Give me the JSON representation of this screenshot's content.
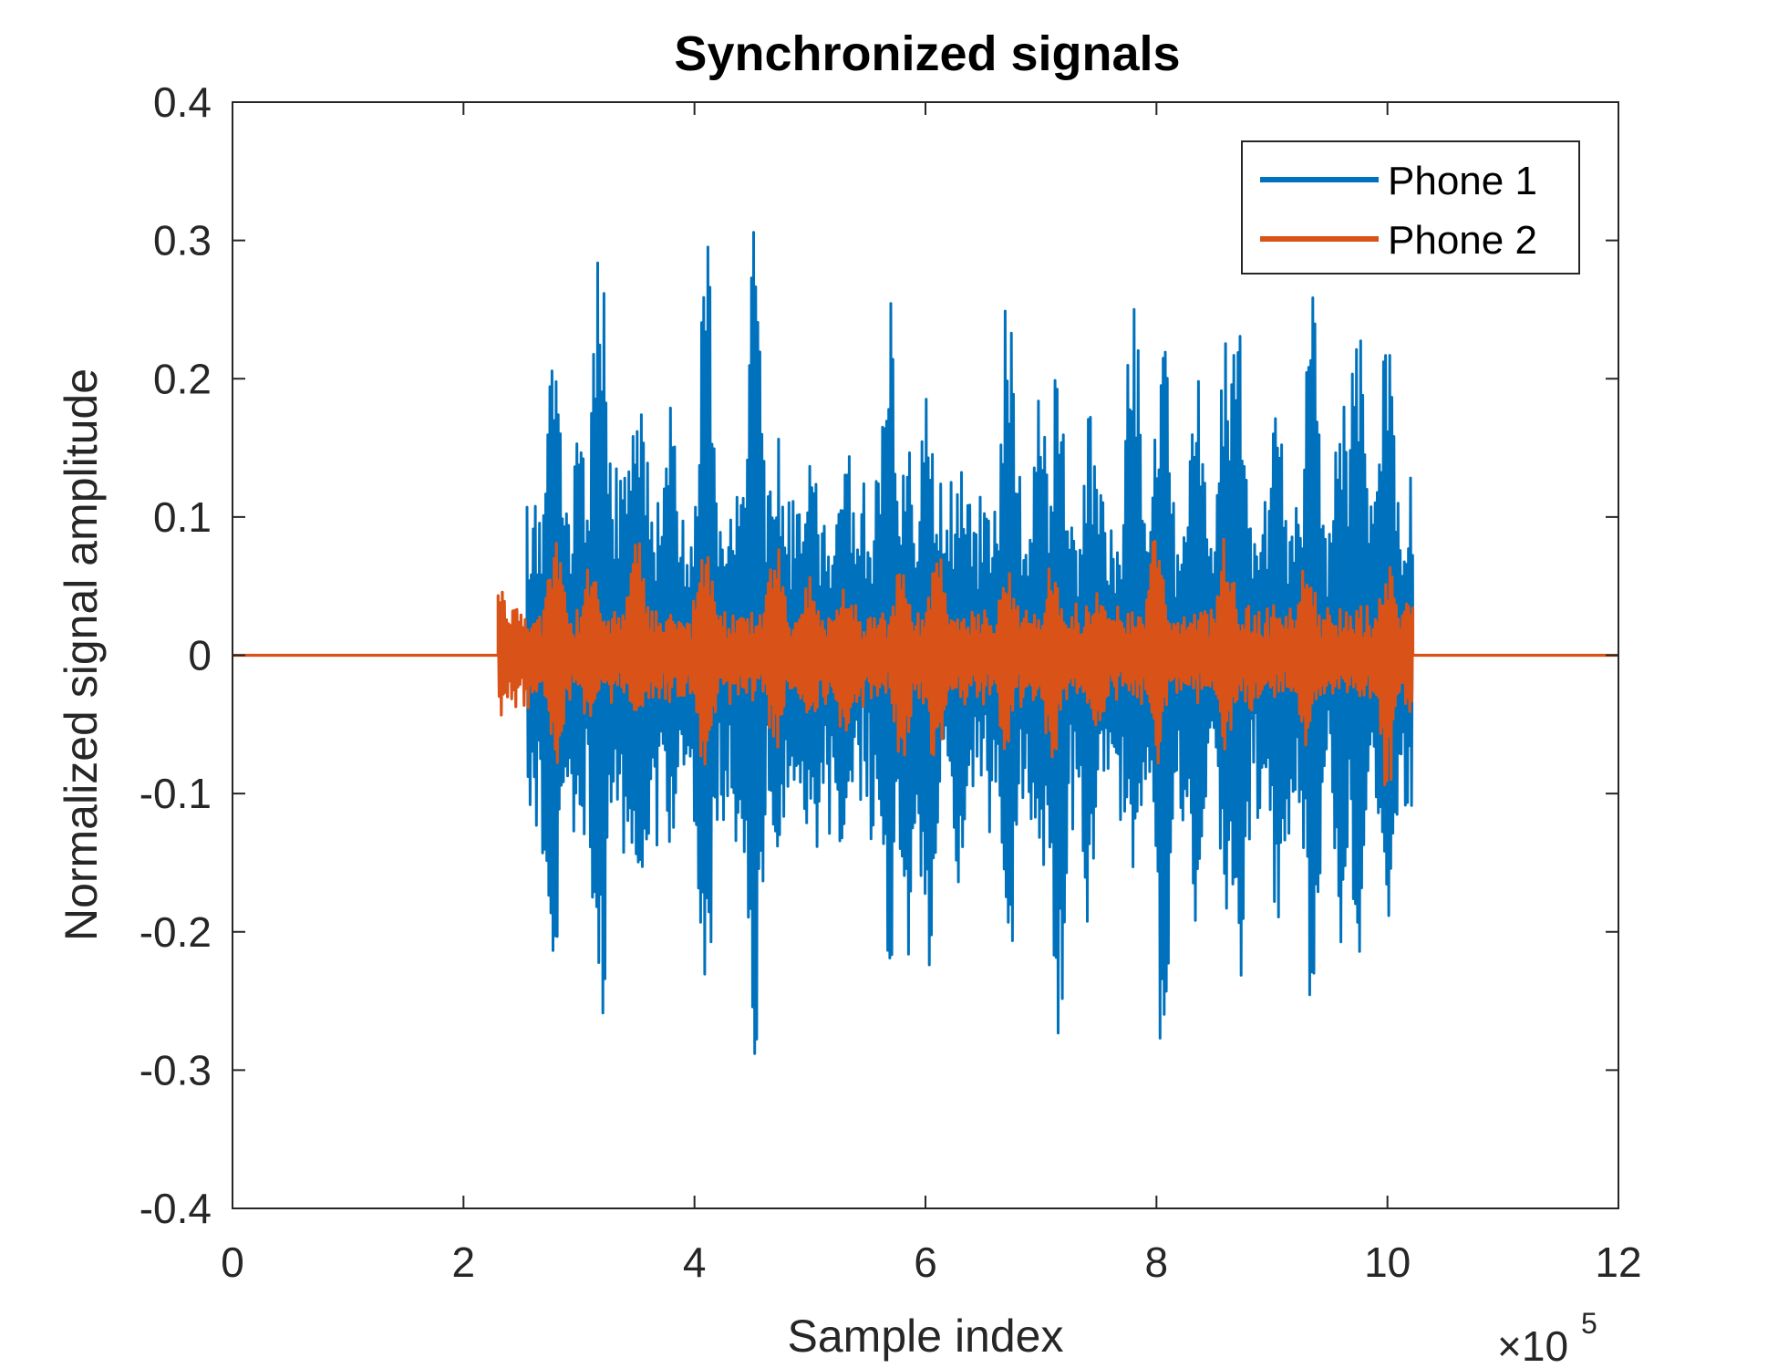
{
  "chart_data": {
    "type": "line",
    "title": "Synchronized signals",
    "xlabel": "Sample index",
    "ylabel": "Normalized signal amplitude",
    "x_exponent_label": "×10",
    "x_exponent_power": "5",
    "xlim": [
      0,
      1200000
    ],
    "ylim": [
      -0.4,
      0.4
    ],
    "x_ticks": [
      0,
      200000,
      400000,
      600000,
      800000,
      1000000,
      1200000
    ],
    "x_tick_labels": [
      "0",
      "2",
      "4",
      "6",
      "8",
      "10",
      "12"
    ],
    "y_ticks": [
      0.4,
      0.3,
      0.2,
      0.1,
      0,
      -0.1,
      -0.2,
      -0.3,
      -0.4
    ],
    "y_tick_labels": [
      "0.4",
      "0.3",
      "0.2",
      "0.1",
      "0",
      "-0.1",
      "-0.2",
      "-0.3",
      "-0.4"
    ],
    "grid": false,
    "legend_position": "top-right",
    "series": [
      {
        "name": "Phone 1",
        "color": "#0072BD",
        "active_range": [
          255000,
          1022000
        ],
        "peaks": [
          [
            272000,
            0.1,
            -0.105
          ],
          [
            278000,
            0.25,
            -0.258
          ],
          [
            300000,
            0.17,
            -0.13
          ],
          [
            318000,
            0.325,
            -0.302
          ],
          [
            345000,
            0.2,
            -0.17
          ],
          [
            353000,
            0.22,
            -0.21
          ],
          [
            380000,
            0.18,
            -0.14
          ],
          [
            410000,
            0.315,
            -0.26
          ],
          [
            440000,
            0.15,
            -0.17
          ],
          [
            452000,
            0.308,
            -0.296
          ],
          [
            470000,
            0.17,
            -0.15
          ],
          [
            500000,
            0.17,
            -0.14
          ],
          [
            530000,
            0.16,
            -0.18
          ],
          [
            568000,
            0.28,
            -0.24
          ],
          [
            585000,
            0.16,
            -0.25
          ],
          [
            602000,
            0.2,
            -0.265
          ],
          [
            630000,
            0.14,
            -0.19
          ],
          [
            672000,
            0.278,
            -0.24
          ],
          [
            700000,
            0.2,
            -0.16
          ],
          [
            715000,
            0.22,
            -0.286
          ],
          [
            742000,
            0.18,
            -0.21
          ],
          [
            780000,
            0.27,
            -0.18
          ],
          [
            805000,
            0.25,
            -0.306
          ],
          [
            835000,
            0.21,
            -0.21
          ],
          [
            860000,
            0.23,
            -0.2
          ],
          [
            870000,
            0.27,
            -0.285
          ],
          [
            905000,
            0.2,
            -0.21
          ],
          [
            935000,
            0.275,
            -0.26
          ],
          [
            960000,
            0.2,
            -0.21
          ],
          [
            975000,
            0.275,
            -0.24
          ],
          [
            1000000,
            0.275,
            -0.27
          ],
          [
            1020000,
            0.12,
            -0.117
          ]
        ]
      },
      {
        "name": "Phone 2",
        "color": "#D95319",
        "active_range": [
          230000,
          1022000
        ],
        "peaks": [
          [
            232000,
            0.05,
            -0.045
          ],
          [
            245000,
            0.04,
            -0.04
          ],
          [
            280000,
            0.09,
            -0.08
          ],
          [
            310000,
            0.07,
            -0.06
          ],
          [
            350000,
            0.1,
            -0.06
          ],
          [
            410000,
            0.08,
            -0.09
          ],
          [
            470000,
            0.09,
            -0.07
          ],
          [
            500000,
            0.06,
            -0.06
          ],
          [
            530000,
            0.06,
            -0.06
          ],
          [
            580000,
            0.07,
            -0.08
          ],
          [
            610000,
            0.08,
            -0.09
          ],
          [
            670000,
            0.07,
            -0.07
          ],
          [
            710000,
            0.07,
            -0.08
          ],
          [
            750000,
            0.05,
            -0.06
          ],
          [
            800000,
            0.09,
            -0.08
          ],
          [
            860000,
            0.09,
            -0.07
          ],
          [
            930000,
            0.08,
            -0.07
          ],
          [
            1000000,
            0.07,
            -0.1
          ],
          [
            1020000,
            0.05,
            -0.05
          ]
        ]
      }
    ]
  }
}
